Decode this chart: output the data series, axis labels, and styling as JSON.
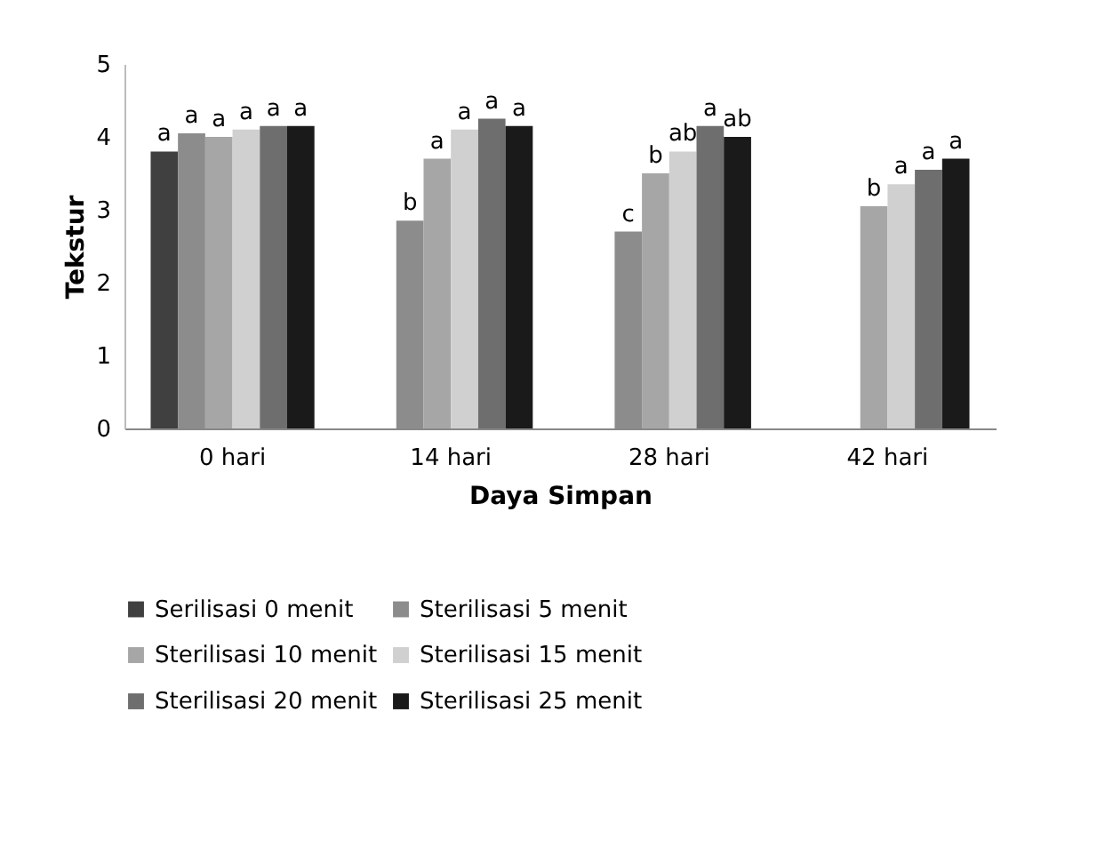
{
  "chart_data": {
    "type": "bar",
    "xlabel": "Daya Simpan",
    "ylabel": "Tekstur",
    "categories": [
      "0 hari",
      "14 hari",
      "28 hari",
      "42 hari"
    ],
    "series": [
      {
        "name": "Serilisasi 0 menit",
        "color": "#404040",
        "values": [
          3.8,
          null,
          null,
          null
        ],
        "value_labels": [
          "a",
          null,
          null,
          null
        ]
      },
      {
        "name": "Sterilisasi 5 menit",
        "color": "#8c8c8c",
        "values": [
          4.05,
          2.85,
          2.7,
          null
        ],
        "value_labels": [
          "a",
          "b",
          "c",
          null
        ]
      },
      {
        "name": "Sterilisasi 10 menit",
        "color": "#a6a6a6",
        "values": [
          4.0,
          3.7,
          3.5,
          3.05
        ],
        "value_labels": [
          "a",
          "a",
          "b",
          "b"
        ]
      },
      {
        "name": "Sterilisasi 15 menit",
        "color": "#d0d0d0",
        "values": [
          4.1,
          4.1,
          3.8,
          3.35
        ],
        "value_labels": [
          "a",
          "a",
          "ab",
          "a"
        ]
      },
      {
        "name": "Sterilisasi 20 menit",
        "color": "#6e6e6e",
        "values": [
          4.15,
          4.25,
          4.15,
          3.55
        ],
        "value_labels": [
          "a",
          "a",
          "a",
          "a"
        ]
      },
      {
        "name": "Sterilisasi 25 menit",
        "color": "#1a1a1a",
        "values": [
          4.15,
          4.15,
          4.0,
          3.7
        ],
        "value_labels": [
          "a",
          "a",
          "ab",
          "a"
        ]
      }
    ],
    "ylim": [
      0,
      5
    ],
    "yticks": [
      0,
      1,
      2,
      3,
      4,
      5
    ],
    "grid": false,
    "legend": "bottom"
  }
}
